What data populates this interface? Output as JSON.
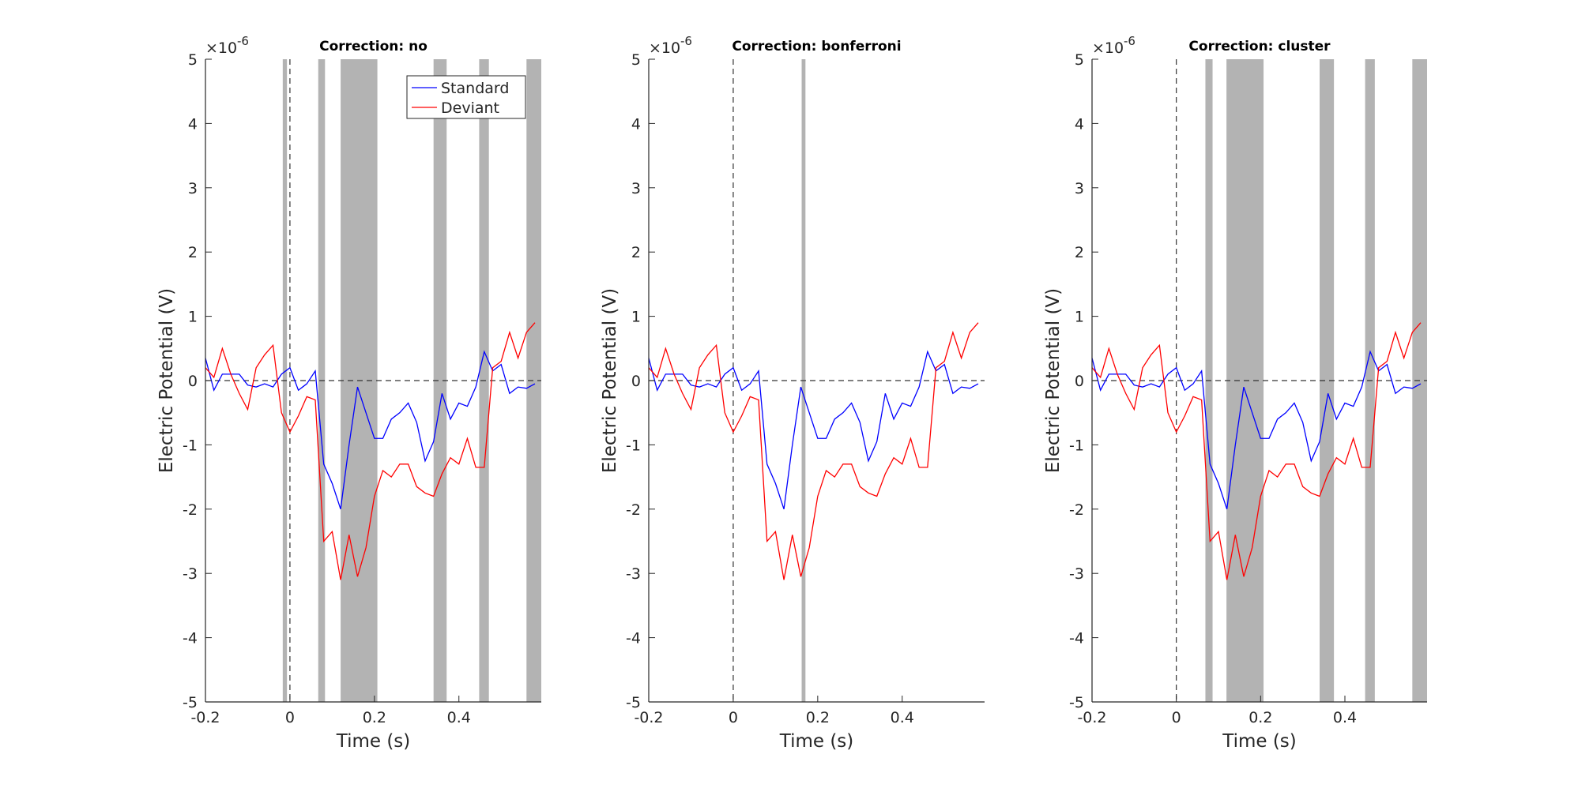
{
  "chart_data": [
    {
      "type": "line",
      "title": "Correction: no",
      "xlabel": "Time (s)",
      "ylabel": "Electric Potential (V)",
      "y_multiplier": "×10",
      "y_exponent": "-6",
      "xlim": [
        -0.2,
        0.595
      ],
      "ylim": [
        -5,
        5
      ],
      "xticks": [
        -0.2,
        0,
        0.2,
        0.4
      ],
      "yticks": [
        -5,
        -4,
        -3,
        -2,
        -1,
        0,
        1,
        2,
        3,
        4,
        5
      ],
      "legend": "upper right",
      "shade_color": "#b3b3b3",
      "shaded_regions": [
        [
          -0.017,
          -0.007
        ],
        [
          0.067,
          0.083
        ],
        [
          0.12,
          0.207
        ],
        [
          0.34,
          0.371
        ],
        [
          0.448,
          0.471
        ],
        [
          0.56,
          0.595
        ]
      ],
      "x": [
        -0.2,
        -0.18,
        -0.16,
        -0.14,
        -0.12,
        -0.1,
        -0.08,
        -0.06,
        -0.04,
        -0.02,
        0,
        0.02,
        0.04,
        0.06,
        0.08,
        0.1,
        0.12,
        0.14,
        0.16,
        0.18,
        0.2,
        0.22,
        0.24,
        0.26,
        0.28,
        0.3,
        0.32,
        0.34,
        0.36,
        0.38,
        0.4,
        0.42,
        0.44,
        0.46,
        0.48,
        0.5,
        0.52,
        0.54,
        0.56,
        0.58
      ],
      "series": [
        {
          "name": "Standard",
          "color": "#0000ff",
          "values": [
            0.35,
            -0.15,
            0.1,
            0.1,
            0.1,
            -0.07,
            -0.1,
            -0.05,
            -0.1,
            0.1,
            0.2,
            -0.15,
            -0.05,
            0.15,
            -1.3,
            -1.6,
            -2.0,
            -1.0,
            -0.1,
            -0.5,
            -0.9,
            -0.9,
            -0.6,
            -0.5,
            -0.35,
            -0.65,
            -1.25,
            -0.95,
            -0.2,
            -0.6,
            -0.35,
            -0.4,
            -0.1,
            0.45,
            0.15,
            0.25,
            -0.2,
            -0.1,
            -0.12,
            -0.05
          ]
        },
        {
          "name": "Deviant",
          "color": "#ff0000",
          "values": [
            0.2,
            0.05,
            0.5,
            0.1,
            -0.2,
            -0.45,
            0.2,
            0.4,
            0.55,
            -0.5,
            -0.8,
            -0.55,
            -0.25,
            -0.3,
            -2.5,
            -2.35,
            -3.1,
            -2.4,
            -3.05,
            -2.6,
            -1.8,
            -1.4,
            -1.5,
            -1.3,
            -1.3,
            -1.65,
            -1.75,
            -1.8,
            -1.45,
            -1.2,
            -1.3,
            -0.9,
            -1.35,
            -1.35,
            0.2,
            0.3,
            0.75,
            0.35,
            0.75,
            0.9
          ]
        }
      ]
    },
    {
      "type": "line",
      "title": "Correction: bonferroni",
      "xlabel": "Time (s)",
      "ylabel": "Electric Potential (V)",
      "y_multiplier": "×10",
      "y_exponent": "-6",
      "xlim": [
        -0.2,
        0.595
      ],
      "ylim": [
        -5,
        5
      ],
      "xticks": [
        -0.2,
        0,
        0.2,
        0.4
      ],
      "yticks": [
        -5,
        -4,
        -3,
        -2,
        -1,
        0,
        1,
        2,
        3,
        4,
        5
      ],
      "shade_color": "#b3b3b3",
      "shaded_regions": [
        [
          0.162,
          0.171
        ]
      ],
      "x": [
        -0.2,
        -0.18,
        -0.16,
        -0.14,
        -0.12,
        -0.1,
        -0.08,
        -0.06,
        -0.04,
        -0.02,
        0,
        0.02,
        0.04,
        0.06,
        0.08,
        0.1,
        0.12,
        0.14,
        0.16,
        0.18,
        0.2,
        0.22,
        0.24,
        0.26,
        0.28,
        0.3,
        0.32,
        0.34,
        0.36,
        0.38,
        0.4,
        0.42,
        0.44,
        0.46,
        0.48,
        0.5,
        0.52,
        0.54,
        0.56,
        0.58
      ],
      "series": [
        {
          "color": "#0000ff",
          "values": [
            0.35,
            -0.15,
            0.1,
            0.1,
            0.1,
            -0.07,
            -0.1,
            -0.05,
            -0.1,
            0.1,
            0.2,
            -0.15,
            -0.05,
            0.15,
            -1.3,
            -1.6,
            -2.0,
            -1.0,
            -0.1,
            -0.5,
            -0.9,
            -0.9,
            -0.6,
            -0.5,
            -0.35,
            -0.65,
            -1.25,
            -0.95,
            -0.2,
            -0.6,
            -0.35,
            -0.4,
            -0.1,
            0.45,
            0.15,
            0.25,
            -0.2,
            -0.1,
            -0.12,
            -0.05
          ]
        },
        {
          "color": "#ff0000",
          "values": [
            0.2,
            0.05,
            0.5,
            0.1,
            -0.2,
            -0.45,
            0.2,
            0.4,
            0.55,
            -0.5,
            -0.8,
            -0.55,
            -0.25,
            -0.3,
            -2.5,
            -2.35,
            -3.1,
            -2.4,
            -3.05,
            -2.6,
            -1.8,
            -1.4,
            -1.5,
            -1.3,
            -1.3,
            -1.65,
            -1.75,
            -1.8,
            -1.45,
            -1.2,
            -1.3,
            -0.9,
            -1.35,
            -1.35,
            0.2,
            0.3,
            0.75,
            0.35,
            0.75,
            0.9
          ]
        }
      ]
    },
    {
      "type": "line",
      "title": "Correction: cluster",
      "xlabel": "Time (s)",
      "ylabel": "Electric Potential (V)",
      "y_multiplier": "×10",
      "y_exponent": "-6",
      "xlim": [
        -0.2,
        0.595
      ],
      "ylim": [
        -5,
        5
      ],
      "xticks": [
        -0.2,
        0,
        0.2,
        0.4
      ],
      "yticks": [
        -5,
        -4,
        -3,
        -2,
        -1,
        0,
        1,
        2,
        3,
        4,
        5
      ],
      "shade_color": "#b3b3b3",
      "shaded_regions": [
        [
          0.069,
          0.086
        ],
        [
          0.119,
          0.207
        ],
        [
          0.34,
          0.374
        ],
        [
          0.448,
          0.471
        ],
        [
          0.56,
          0.595
        ]
      ],
      "x": [
        -0.2,
        -0.18,
        -0.16,
        -0.14,
        -0.12,
        -0.1,
        -0.08,
        -0.06,
        -0.04,
        -0.02,
        0,
        0.02,
        0.04,
        0.06,
        0.08,
        0.1,
        0.12,
        0.14,
        0.16,
        0.18,
        0.2,
        0.22,
        0.24,
        0.26,
        0.28,
        0.3,
        0.32,
        0.34,
        0.36,
        0.38,
        0.4,
        0.42,
        0.44,
        0.46,
        0.48,
        0.5,
        0.52,
        0.54,
        0.56,
        0.58
      ],
      "series": [
        {
          "color": "#0000ff",
          "values": [
            0.35,
            -0.15,
            0.1,
            0.1,
            0.1,
            -0.07,
            -0.1,
            -0.05,
            -0.1,
            0.1,
            0.2,
            -0.15,
            -0.05,
            0.15,
            -1.3,
            -1.6,
            -2.0,
            -1.0,
            -0.1,
            -0.5,
            -0.9,
            -0.9,
            -0.6,
            -0.5,
            -0.35,
            -0.65,
            -1.25,
            -0.95,
            -0.2,
            -0.6,
            -0.35,
            -0.4,
            -0.1,
            0.45,
            0.15,
            0.25,
            -0.2,
            -0.1,
            -0.12,
            -0.05
          ]
        },
        {
          "color": "#ff0000",
          "values": [
            0.2,
            0.05,
            0.5,
            0.1,
            -0.2,
            -0.45,
            0.2,
            0.4,
            0.55,
            -0.5,
            -0.8,
            -0.55,
            -0.25,
            -0.3,
            -2.5,
            -2.35,
            -3.1,
            -2.4,
            -3.05,
            -2.6,
            -1.8,
            -1.4,
            -1.5,
            -1.3,
            -1.3,
            -1.65,
            -1.75,
            -1.8,
            -1.45,
            -1.2,
            -1.3,
            -0.9,
            -1.35,
            -1.35,
            0.2,
            0.3,
            0.75,
            0.35,
            0.75,
            0.9
          ]
        }
      ]
    }
  ]
}
